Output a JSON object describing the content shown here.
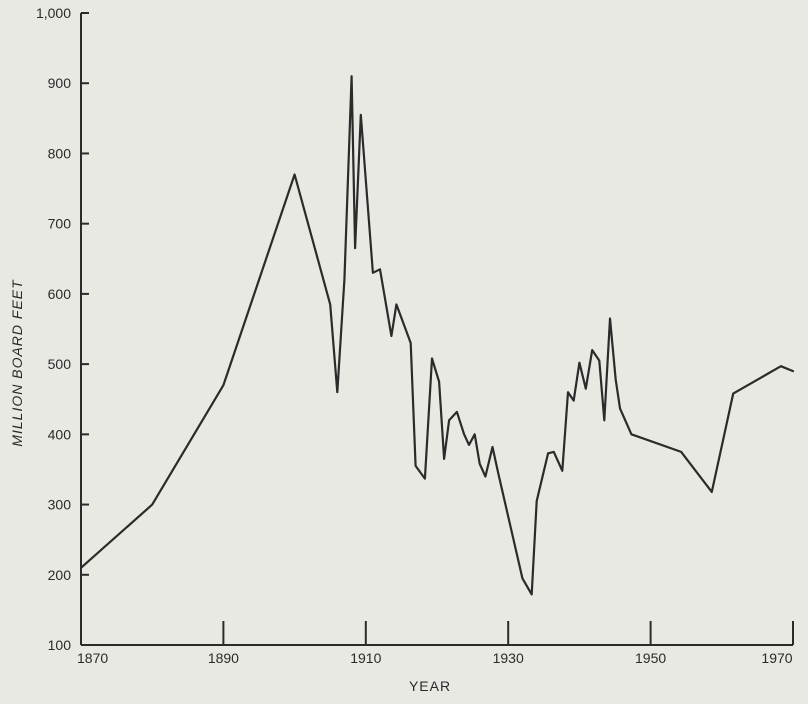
{
  "chart_data": {
    "type": "line",
    "title": "",
    "xlabel": "YEAR",
    "ylabel": "MILLION BOARD FEET",
    "xlim": [
      1870,
      1970
    ],
    "ylim": [
      100,
      1000
    ],
    "x_ticks": [
      1870,
      1890,
      1910,
      1930,
      1950,
      1970
    ],
    "x_tick_labels": [
      "1870",
      "1890",
      "1910",
      "1930",
      "1950",
      "1970"
    ],
    "y_ticks": [
      100,
      200,
      300,
      400,
      500,
      600,
      700,
      800,
      900,
      1000
    ],
    "y_tick_labels": [
      "100",
      "200",
      "300",
      "400",
      "500",
      "600",
      "700",
      "800",
      "900",
      "1,000"
    ],
    "grid": false,
    "colors": {
      "line": "#2b2b2b",
      "axis": "#2b2b2b",
      "background": "#e9e9e4"
    },
    "series": [
      {
        "x": [
          1870,
          1880,
          1890,
          1900,
          1905,
          1906,
          1907,
          1908,
          1908.5,
          1909.3,
          1911,
          1912,
          1913.6,
          1914.3,
          1916.3,
          1917,
          1918.3,
          1919.3,
          1920.3,
          1921,
          1921.7,
          1922.8,
          1923.8,
          1924.5,
          1925.3,
          1926,
          1926.8,
          1927.8,
          1928.6,
          1932,
          1933.3,
          1934,
          1935.6,
          1936.4,
          1937.6,
          1938.4,
          1939.2,
          1940,
          1940.9,
          1941.8,
          1942.8,
          1943.5,
          1944.3,
          1945.1,
          1945.7,
          1947.3,
          1954.3,
          1958.6,
          1961.6,
          1968.3,
          1970
        ],
        "y": [
          210,
          300,
          470,
          770,
          585,
          460,
          620,
          910,
          665,
          855,
          630,
          635,
          540,
          585,
          530,
          355,
          337,
          508,
          475,
          365,
          420,
          432,
          400,
          385,
          400,
          358,
          340,
          382,
          345,
          195,
          172,
          305,
          373,
          375,
          348,
          460,
          448,
          502,
          465,
          520,
          505,
          420,
          565,
          478,
          437,
          400,
          375,
          318,
          458,
          497,
          490
        ]
      }
    ]
  }
}
